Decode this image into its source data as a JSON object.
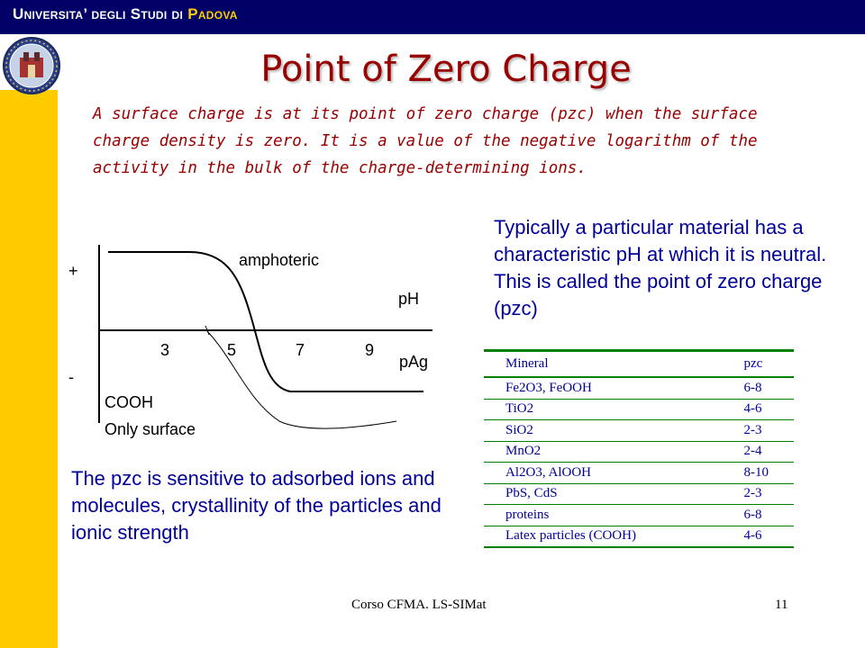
{
  "header": {
    "title_part1": "Universita’ degli Studi di ",
    "title_part2": "Padova"
  },
  "colors": {
    "header_bar": "#000066",
    "sidebar": "#ffcc00",
    "title": "#990000",
    "body_text": "#000099",
    "table_rule": "#008000"
  },
  "slide": {
    "title": "Point of Zero Charge",
    "definition": "A surface charge is at its point of zero charge (pzc) when the surface charge density is zero. It is a value of the negative logarithm of the activity in the bulk of the charge-determining ions.",
    "typical": "Typically a particular material has a characteristic pH at which it is neutral. This is called the point of zero charge (pzc)",
    "sensitive": "The pzc is sensitive to adsorbed ions and molecules, crystallinity of the particles and ionic strength"
  },
  "chart_data": {
    "type": "line",
    "x_ticks": [
      "3",
      "5",
      "7",
      "9"
    ],
    "x_axis_labels": [
      "pH",
      "pAg"
    ],
    "y_axis_labels": [
      "+",
      "-"
    ],
    "series": [
      {
        "name": "amphoteric"
      },
      {
        "name": "COOH Only surface"
      }
    ],
    "annotations": [
      "amphoteric",
      "COOH",
      "Only surface"
    ]
  },
  "table": {
    "headers": [
      "Mineral",
      "pzc"
    ],
    "rows": [
      [
        "Fe2O3, FeOOH",
        "6-8"
      ],
      [
        "TiO2",
        "4-6"
      ],
      [
        "SiO2",
        "2-3"
      ],
      [
        "MnO2",
        "2-4"
      ],
      [
        "Al2O3, AlOOH",
        "8-10"
      ],
      [
        "PbS, CdS",
        "2-3"
      ],
      [
        "proteins",
        "6-8"
      ],
      [
        "Latex particles (COOH)",
        "4-6"
      ]
    ]
  },
  "footer": {
    "course": "Corso CFMA. LS-SIMat",
    "page": "11"
  }
}
